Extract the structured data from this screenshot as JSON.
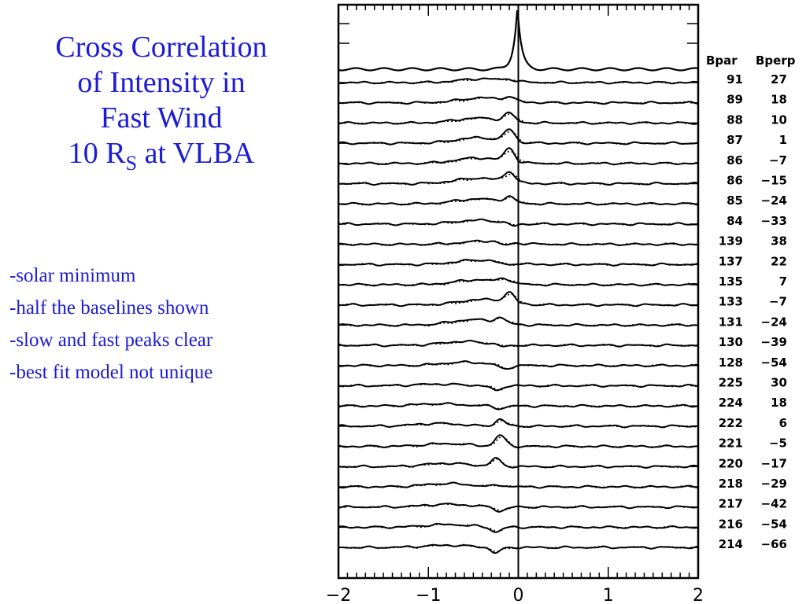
{
  "slide": {
    "title_lines": [
      "Cross Correlation",
      "of Intensity in",
      "Fast Wind"
    ],
    "title_last_prefix": "10 R",
    "title_last_sub": "S",
    "title_last_suffix": " at VLBA",
    "bullets": [
      "-solar minimum",
      "-half the baselines shown",
      "-slow and fast peaks clear",
      "-best fit model not unique"
    ]
  },
  "chart_data": {
    "type": "line",
    "xlim": [
      -2,
      2
    ],
    "x_ticks": [
      -2,
      -1,
      0,
      1,
      2
    ],
    "x_tick_labels": [
      "−2",
      "−1",
      "0",
      "1",
      "2"
    ],
    "vertical_line_at": 0,
    "series_styles": [
      "solid (measured)",
      "dotted (model)"
    ],
    "table_headers": [
      "Bpar",
      "Bperp"
    ],
    "autocorrelation_peak": {
      "x": -0.01,
      "height_rel": 1.0
    },
    "baselines": [
      {
        "bpar": "91",
        "bperp": "27",
        "slow_x": -0.4,
        "slow_h": 0.7,
        "fast_x": -0.1,
        "fast_h": 0.3
      },
      {
        "bpar": "89",
        "bperp": "18",
        "slow_x": -0.4,
        "slow_h": 0.9,
        "fast_x": -0.1,
        "fast_h": 0.7
      },
      {
        "bpar": "88",
        "bperp": "10",
        "slow_x": -0.45,
        "slow_h": 0.9,
        "fast_x": -0.1,
        "fast_h": 1.5
      },
      {
        "bpar": "87",
        "bperp": "1",
        "slow_x": -0.45,
        "slow_h": 1.0,
        "fast_x": -0.1,
        "fast_h": 2.2
      },
      {
        "bpar": "86",
        "bperp": "−7",
        "slow_x": -0.45,
        "slow_h": 1.0,
        "fast_x": -0.1,
        "fast_h": 2.4
      },
      {
        "bpar": "86",
        "bperp": "−15",
        "slow_x": -0.45,
        "slow_h": 1.0,
        "fast_x": -0.1,
        "fast_h": 1.9
      },
      {
        "bpar": "85",
        "bperp": "−24",
        "slow_x": -0.45,
        "slow_h": 0.9,
        "fast_x": -0.1,
        "fast_h": 1.0
      },
      {
        "bpar": "84",
        "bperp": "−33",
        "slow_x": -0.45,
        "slow_h": 0.7,
        "fast_x": -0.05,
        "fast_h": -0.5
      },
      {
        "bpar": "139",
        "bperp": "38",
        "slow_x": -0.35,
        "slow_h": 0.6,
        "fast_x": -0.15,
        "fast_h": -0.6
      },
      {
        "bpar": "137",
        "bperp": "22",
        "slow_x": -0.45,
        "slow_h": 0.8,
        "fast_x": -0.15,
        "fast_h": -0.4
      },
      {
        "bpar": "135",
        "bperp": "7",
        "slow_x": -0.45,
        "slow_h": 0.9,
        "fast_x": -0.15,
        "fast_h": 0.8
      },
      {
        "bpar": "133",
        "bperp": "−7",
        "slow_x": -0.4,
        "slow_h": 1.0,
        "fast_x": -0.1,
        "fast_h": 1.8
      },
      {
        "bpar": "131",
        "bperp": "−24",
        "slow_x": -0.5,
        "slow_h": 1.0,
        "fast_x": -0.2,
        "fast_h": 0.9
      },
      {
        "bpar": "130",
        "bperp": "−39",
        "slow_x": -0.6,
        "slow_h": 0.7,
        "fast_x": -0.15,
        "fast_h": -0.4
      },
      {
        "bpar": "128",
        "bperp": "−54",
        "slow_x": -0.6,
        "slow_h": 0.6,
        "fast_x": -0.15,
        "fast_h": -0.8
      },
      {
        "bpar": "225",
        "bperp": "30",
        "slow_x": -0.9,
        "slow_h": 0.3,
        "fast_x": -0.25,
        "fast_h": -0.9
      },
      {
        "bpar": "224",
        "bperp": "18",
        "slow_x": -0.9,
        "slow_h": 0.4,
        "fast_x": -0.2,
        "fast_h": -0.5
      },
      {
        "bpar": "222",
        "bperp": "6",
        "slow_x": -0.9,
        "slow_h": 0.5,
        "fast_x": -0.2,
        "fast_h": 1.2
      },
      {
        "bpar": "221",
        "bperp": "−5",
        "slow_x": -0.8,
        "slow_h": 0.5,
        "fast_x": -0.2,
        "fast_h": 2.0
      },
      {
        "bpar": "220",
        "bperp": "−17",
        "slow_x": -0.8,
        "slow_h": 0.6,
        "fast_x": -0.25,
        "fast_h": 1.4
      },
      {
        "bpar": "218",
        "bperp": "−29",
        "slow_x": -0.8,
        "slow_h": 0.6,
        "fast_x": -0.2,
        "fast_h": 0.3
      },
      {
        "bpar": "217",
        "bperp": "−42",
        "slow_x": -0.8,
        "slow_h": 0.5,
        "fast_x": -0.2,
        "fast_h": -0.8
      },
      {
        "bpar": "216",
        "bperp": "−54",
        "slow_x": -0.8,
        "slow_h": 0.5,
        "fast_x": -0.25,
        "fast_h": -0.9
      },
      {
        "bpar": "214",
        "bperp": "−66",
        "slow_x": -0.8,
        "slow_h": 0.4,
        "fast_x": -0.25,
        "fast_h": -1.0
      }
    ]
  }
}
